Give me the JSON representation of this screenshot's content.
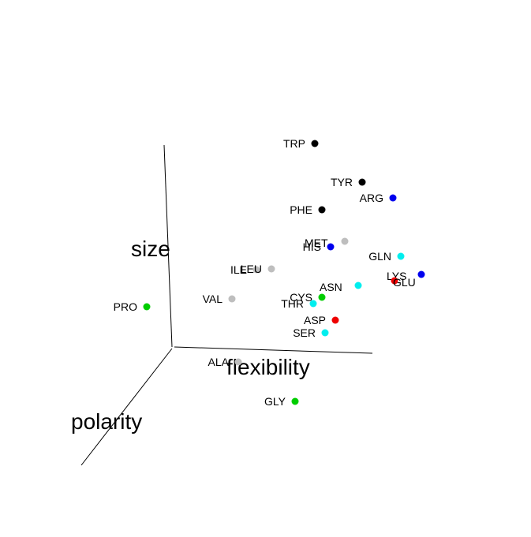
{
  "chart_data": {
    "type": "scatter",
    "dimensions": 3,
    "axes": {
      "x": "flexibility",
      "y": "size",
      "z": "polarity"
    },
    "colors": {
      "black": "#000000",
      "blue": "#0000ee",
      "grey": "#bebebe",
      "cyan": "#00eeee",
      "green": "#00cd00",
      "red": "#ee0000"
    },
    "points": [
      {
        "label": "TRP",
        "color": "black"
      },
      {
        "label": "TYR",
        "color": "black"
      },
      {
        "label": "ARG",
        "color": "blue"
      },
      {
        "label": "PHE",
        "color": "black"
      },
      {
        "label": "MET",
        "color": "grey"
      },
      {
        "label": "HIS",
        "color": "blue"
      },
      {
        "label": "GLN",
        "color": "cyan"
      },
      {
        "label": "ILE",
        "color": "grey"
      },
      {
        "label": "LEU",
        "color": "grey"
      },
      {
        "label": "LYS",
        "color": "blue"
      },
      {
        "label": "GLU",
        "color": "red"
      },
      {
        "label": "ASN",
        "color": "cyan"
      },
      {
        "label": "VAL",
        "color": "grey"
      },
      {
        "label": "CYS",
        "color": "green"
      },
      {
        "label": "THR",
        "color": "cyan"
      },
      {
        "label": "PRO",
        "color": "green"
      },
      {
        "label": "ASP",
        "color": "red"
      },
      {
        "label": "SER",
        "color": "cyan"
      },
      {
        "label": "ALA",
        "color": "grey"
      },
      {
        "label": "GLY",
        "color": "green"
      }
    ]
  }
}
